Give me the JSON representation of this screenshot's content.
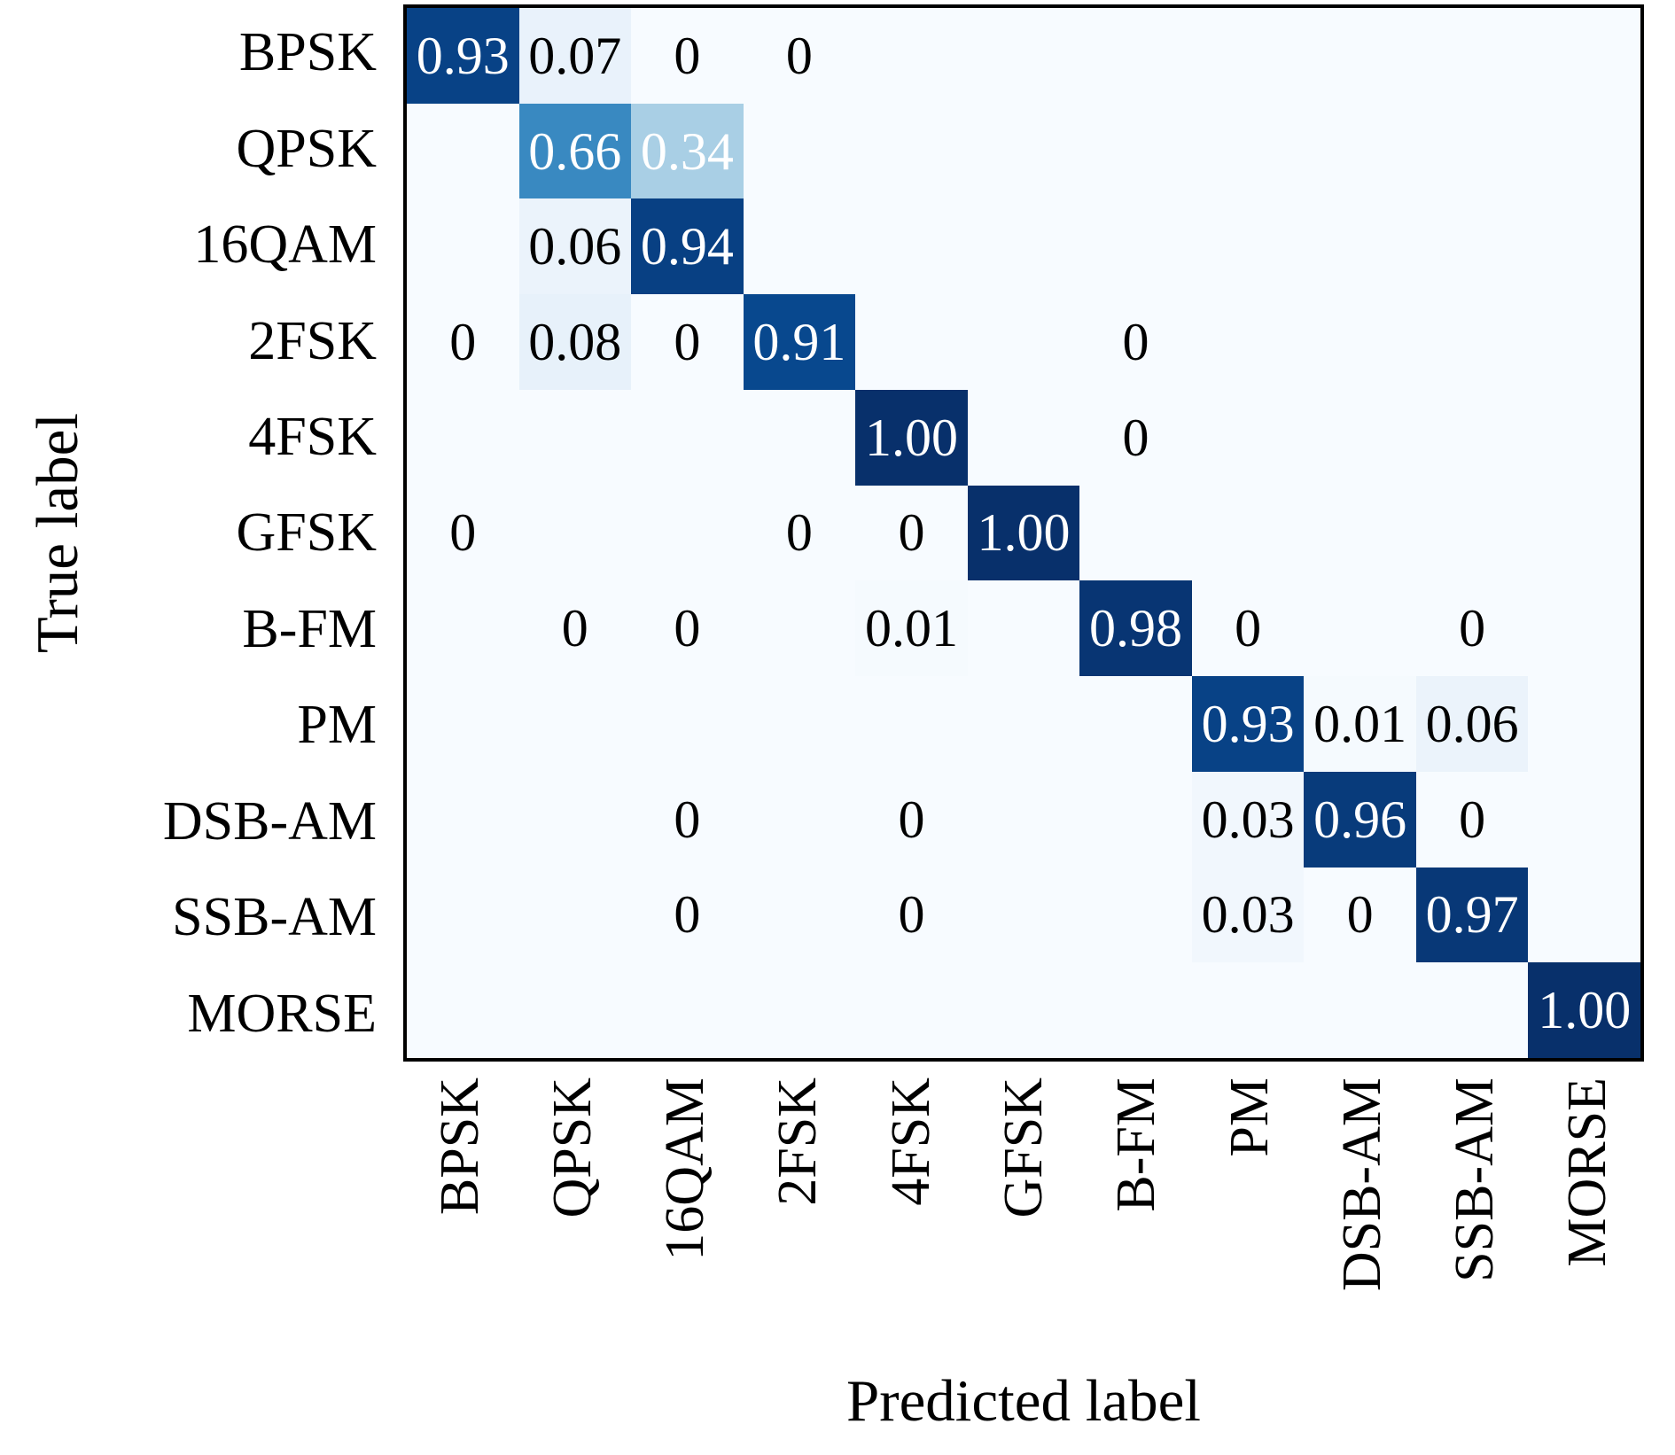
{
  "chart_data": {
    "type": "heatmap",
    "title": "",
    "xlabel": "Predicted label",
    "ylabel": "True label",
    "categories": [
      "BPSK",
      "QPSK",
      "16QAM",
      "2FSK",
      "4FSK",
      "GFSK",
      "B-FM",
      "PM",
      "DSB-AM",
      "SSB-AM",
      "MORSE"
    ],
    "value_range": [
      0,
      1
    ],
    "colormap": "Blues",
    "colormap_stops": [
      [
        0.0,
        "#f7fbff"
      ],
      [
        0.125,
        "#deebf7"
      ],
      [
        0.25,
        "#c6dbef"
      ],
      [
        0.375,
        "#9ecae1"
      ],
      [
        0.5,
        "#6baed6"
      ],
      [
        0.625,
        "#4292c6"
      ],
      [
        0.75,
        "#2171b5"
      ],
      [
        0.875,
        "#08519c"
      ],
      [
        1.0,
        "#08306b"
      ]
    ],
    "text_color_threshold": 0.3,
    "text_colors": {
      "dark_cell": "#ffffff",
      "light_cell": "#000000"
    },
    "axis_border_color": "#000000",
    "background_color": "#ffffff",
    "values": [
      [
        0.93,
        0.07,
        0,
        0,
        null,
        null,
        null,
        null,
        null,
        null,
        null
      ],
      [
        null,
        0.66,
        0.34,
        null,
        null,
        null,
        null,
        null,
        null,
        null,
        null
      ],
      [
        null,
        0.06,
        0.94,
        null,
        null,
        null,
        null,
        null,
        null,
        null,
        null
      ],
      [
        0,
        0.08,
        0,
        0.91,
        null,
        null,
        0,
        null,
        null,
        null,
        null
      ],
      [
        null,
        null,
        null,
        null,
        1.0,
        null,
        0,
        null,
        null,
        null,
        null
      ],
      [
        0,
        null,
        null,
        0,
        0,
        1.0,
        null,
        null,
        null,
        null,
        null
      ],
      [
        null,
        0,
        0,
        null,
        0.01,
        null,
        0.98,
        0,
        null,
        0,
        null
      ],
      [
        null,
        null,
        null,
        null,
        null,
        null,
        null,
        0.93,
        0.01,
        0.06,
        null
      ],
      [
        null,
        null,
        0,
        null,
        0,
        null,
        null,
        0.03,
        0.96,
        0,
        null
      ],
      [
        null,
        null,
        0,
        null,
        0,
        null,
        null,
        0.03,
        0,
        0.97,
        null
      ],
      [
        null,
        null,
        null,
        null,
        null,
        null,
        null,
        null,
        null,
        null,
        1.0
      ]
    ],
    "cell_labels": [
      [
        "0.93",
        "0.07",
        "0",
        "0",
        "",
        "",
        "",
        "",
        "",
        "",
        ""
      ],
      [
        "",
        "0.66",
        "0.34",
        "",
        "",
        "",
        "",
        "",
        "",
        "",
        ""
      ],
      [
        "",
        "0.06",
        "0.94",
        "",
        "",
        "",
        "",
        "",
        "",
        "",
        ""
      ],
      [
        "0",
        "0.08",
        "0",
        "0.91",
        "",
        "",
        "0",
        "",
        "",
        "",
        ""
      ],
      [
        "",
        "",
        "",
        "",
        "1.00",
        "",
        "0",
        "",
        "",
        "",
        ""
      ],
      [
        "0",
        "",
        "",
        "0",
        "0",
        "1.00",
        "",
        "",
        "",
        "",
        ""
      ],
      [
        "",
        "0",
        "0",
        "",
        "0.01",
        "",
        "0.98",
        "0",
        "",
        "0",
        ""
      ],
      [
        "",
        "",
        "",
        "",
        "",
        "",
        "",
        "0.93",
        "0.01",
        "0.06",
        ""
      ],
      [
        "",
        "",
        "0",
        "",
        "0",
        "",
        "",
        "0.03",
        "0.96",
        "0",
        ""
      ],
      [
        "",
        "",
        "0",
        "",
        "0",
        "",
        "",
        "0.03",
        "0",
        "0.97",
        ""
      ],
      [
        "",
        "",
        "",
        "",
        "",
        "",
        "",
        "",
        "",
        "",
        "1.00"
      ]
    ]
  }
}
